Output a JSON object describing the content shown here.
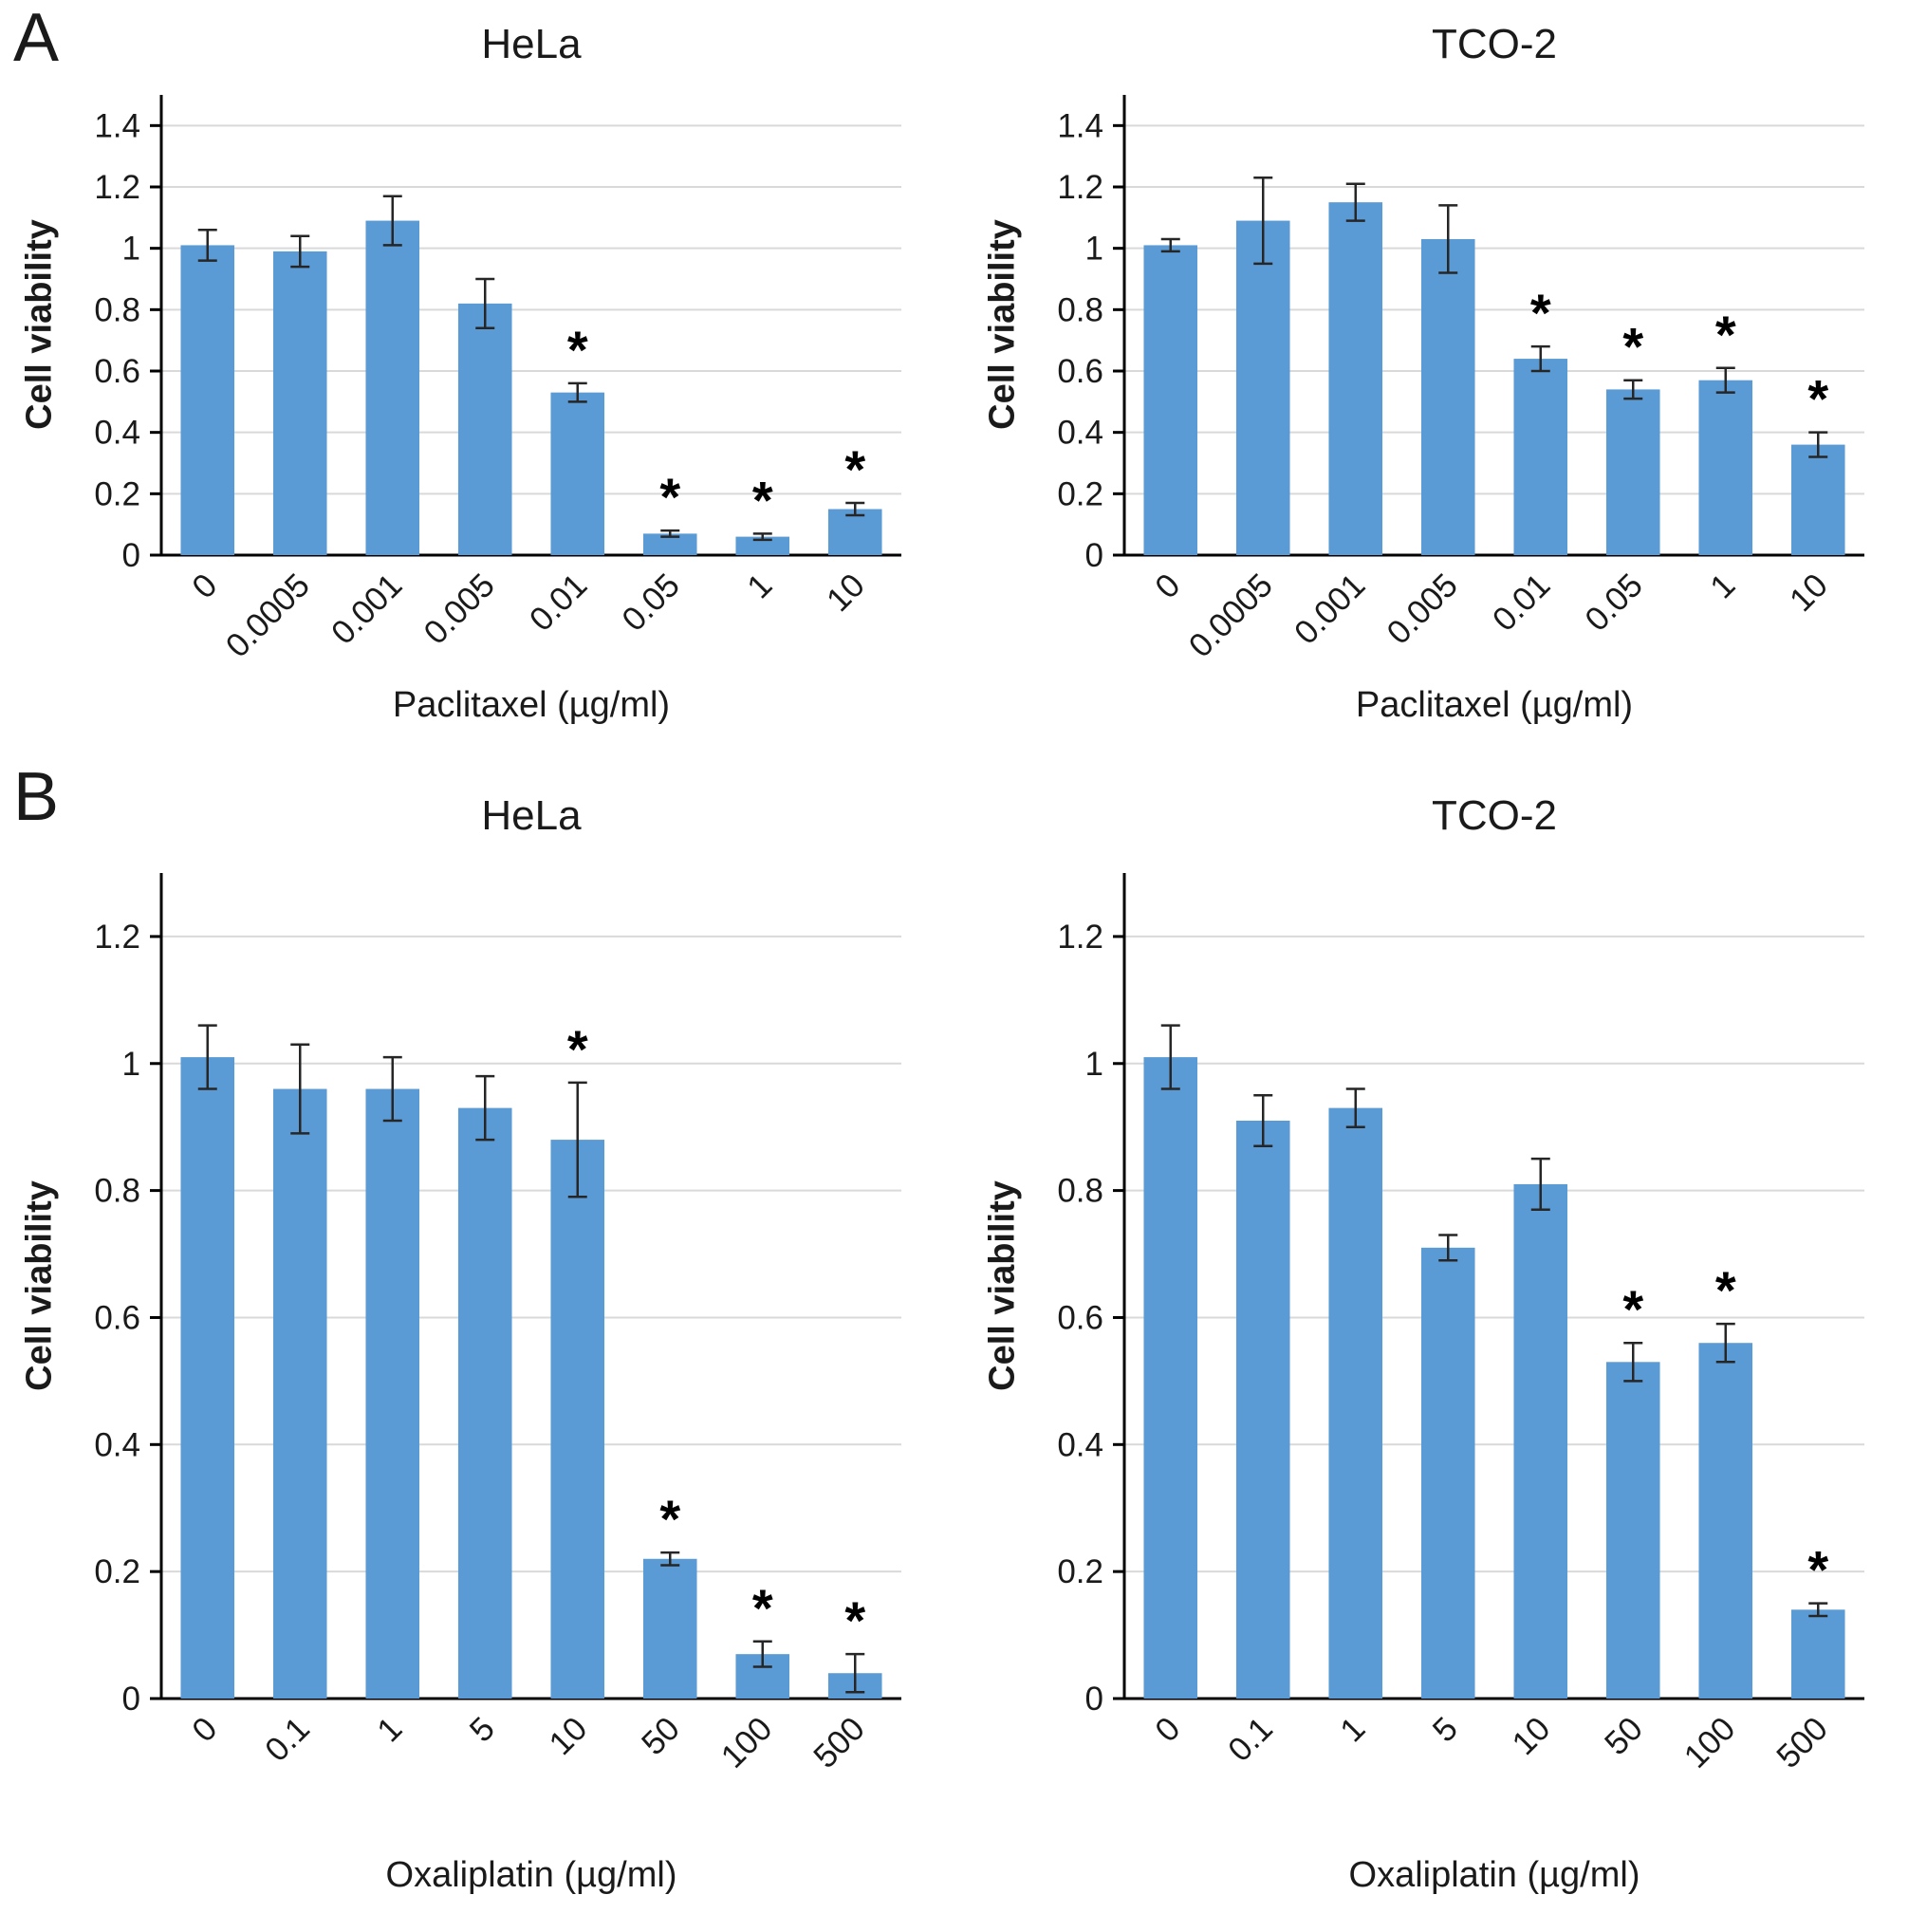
{
  "style": {
    "bar_color": "#5B9BD5",
    "grid_color": "#D9D9D9",
    "axis_color": "#000000",
    "error_color": "#262626",
    "text_color": "#1A1A1A",
    "significance_marker": "*"
  },
  "panels": [
    {
      "label": "A"
    },
    {
      "label": "B"
    }
  ],
  "chart_data": [
    {
      "type": "bar",
      "panel": "A",
      "title": "HeLa",
      "xlabel": "Paclitaxel (µg/ml)",
      "ylabel": "Cell viability",
      "categories": [
        "0",
        "0.0005",
        "0.001",
        "0.005",
        "0.01",
        "0.05",
        "1",
        "10"
      ],
      "values": [
        1.01,
        0.99,
        1.09,
        0.82,
        0.53,
        0.07,
        0.06,
        0.15
      ],
      "errors": [
        0.05,
        0.05,
        0.08,
        0.08,
        0.03,
        0.01,
        0.01,
        0.02
      ],
      "significant": [
        false,
        false,
        false,
        false,
        true,
        true,
        true,
        true
      ],
      "ylim": [
        0,
        1.5
      ],
      "yticks": [
        0,
        0.2,
        0.4,
        0.6,
        0.8,
        1,
        1.2,
        1.4
      ],
      "ytick_labels": [
        "0",
        "0.2",
        "0.4",
        "0.6",
        "0.8",
        "1",
        "1.2",
        "1.4"
      ],
      "grid": true,
      "legend_position": "none"
    },
    {
      "type": "bar",
      "panel": "A",
      "title": "TCO-2",
      "xlabel": "Paclitaxel (µg/ml)",
      "ylabel": "Cell viability",
      "categories": [
        "0",
        "0.0005",
        "0.001",
        "0.005",
        "0.01",
        "0.05",
        "1",
        "10"
      ],
      "values": [
        1.01,
        1.09,
        1.15,
        1.03,
        0.64,
        0.54,
        0.57,
        0.36
      ],
      "errors": [
        0.02,
        0.14,
        0.06,
        0.11,
        0.04,
        0.03,
        0.04,
        0.04
      ],
      "significant": [
        false,
        false,
        false,
        false,
        true,
        true,
        true,
        true
      ],
      "ylim": [
        0,
        1.5
      ],
      "yticks": [
        0,
        0.2,
        0.4,
        0.6,
        0.8,
        1,
        1.2,
        1.4
      ],
      "ytick_labels": [
        "0",
        "0.2",
        "0.4",
        "0.6",
        "0.8",
        "1",
        "1.2",
        "1.4"
      ],
      "grid": true,
      "legend_position": "none"
    },
    {
      "type": "bar",
      "panel": "B",
      "title": "HeLa",
      "xlabel": "Oxaliplatin (µg/ml)",
      "ylabel": "Cell viability",
      "categories": [
        "0",
        "0.1",
        "1",
        "5",
        "10",
        "50",
        "100",
        "500"
      ],
      "values": [
        1.01,
        0.96,
        0.96,
        0.93,
        0.88,
        0.22,
        0.07,
        0.04
      ],
      "errors": [
        0.05,
        0.07,
        0.05,
        0.05,
        0.09,
        0.01,
        0.02,
        0.03
      ],
      "significant": [
        false,
        false,
        false,
        false,
        true,
        true,
        true,
        true
      ],
      "ylim": [
        0,
        1.3
      ],
      "yticks": [
        0,
        0.2,
        0.4,
        0.6,
        0.8,
        1,
        1.2
      ],
      "ytick_labels": [
        "0",
        "0.2",
        "0.4",
        "0.6",
        "0.8",
        "1",
        "1.2"
      ],
      "grid": true,
      "legend_position": "none"
    },
    {
      "type": "bar",
      "panel": "B",
      "title": "TCO-2",
      "xlabel": "Oxaliplatin (µg/ml)",
      "ylabel": "Cell viability",
      "categories": [
        "0",
        "0.1",
        "1",
        "5",
        "10",
        "50",
        "100",
        "500"
      ],
      "values": [
        1.01,
        0.91,
        0.93,
        0.71,
        0.81,
        0.53,
        0.56,
        0.14
      ],
      "errors": [
        0.05,
        0.04,
        0.03,
        0.02,
        0.04,
        0.03,
        0.03,
        0.01
      ],
      "significant": [
        false,
        false,
        false,
        false,
        false,
        true,
        true,
        true
      ],
      "ylim": [
        0,
        1.3
      ],
      "yticks": [
        0,
        0.2,
        0.4,
        0.6,
        0.8,
        1,
        1.2
      ],
      "ytick_labels": [
        "0",
        "0.2",
        "0.4",
        "0.6",
        "0.8",
        "1",
        "1.2"
      ],
      "grid": true,
      "legend_position": "none"
    }
  ]
}
